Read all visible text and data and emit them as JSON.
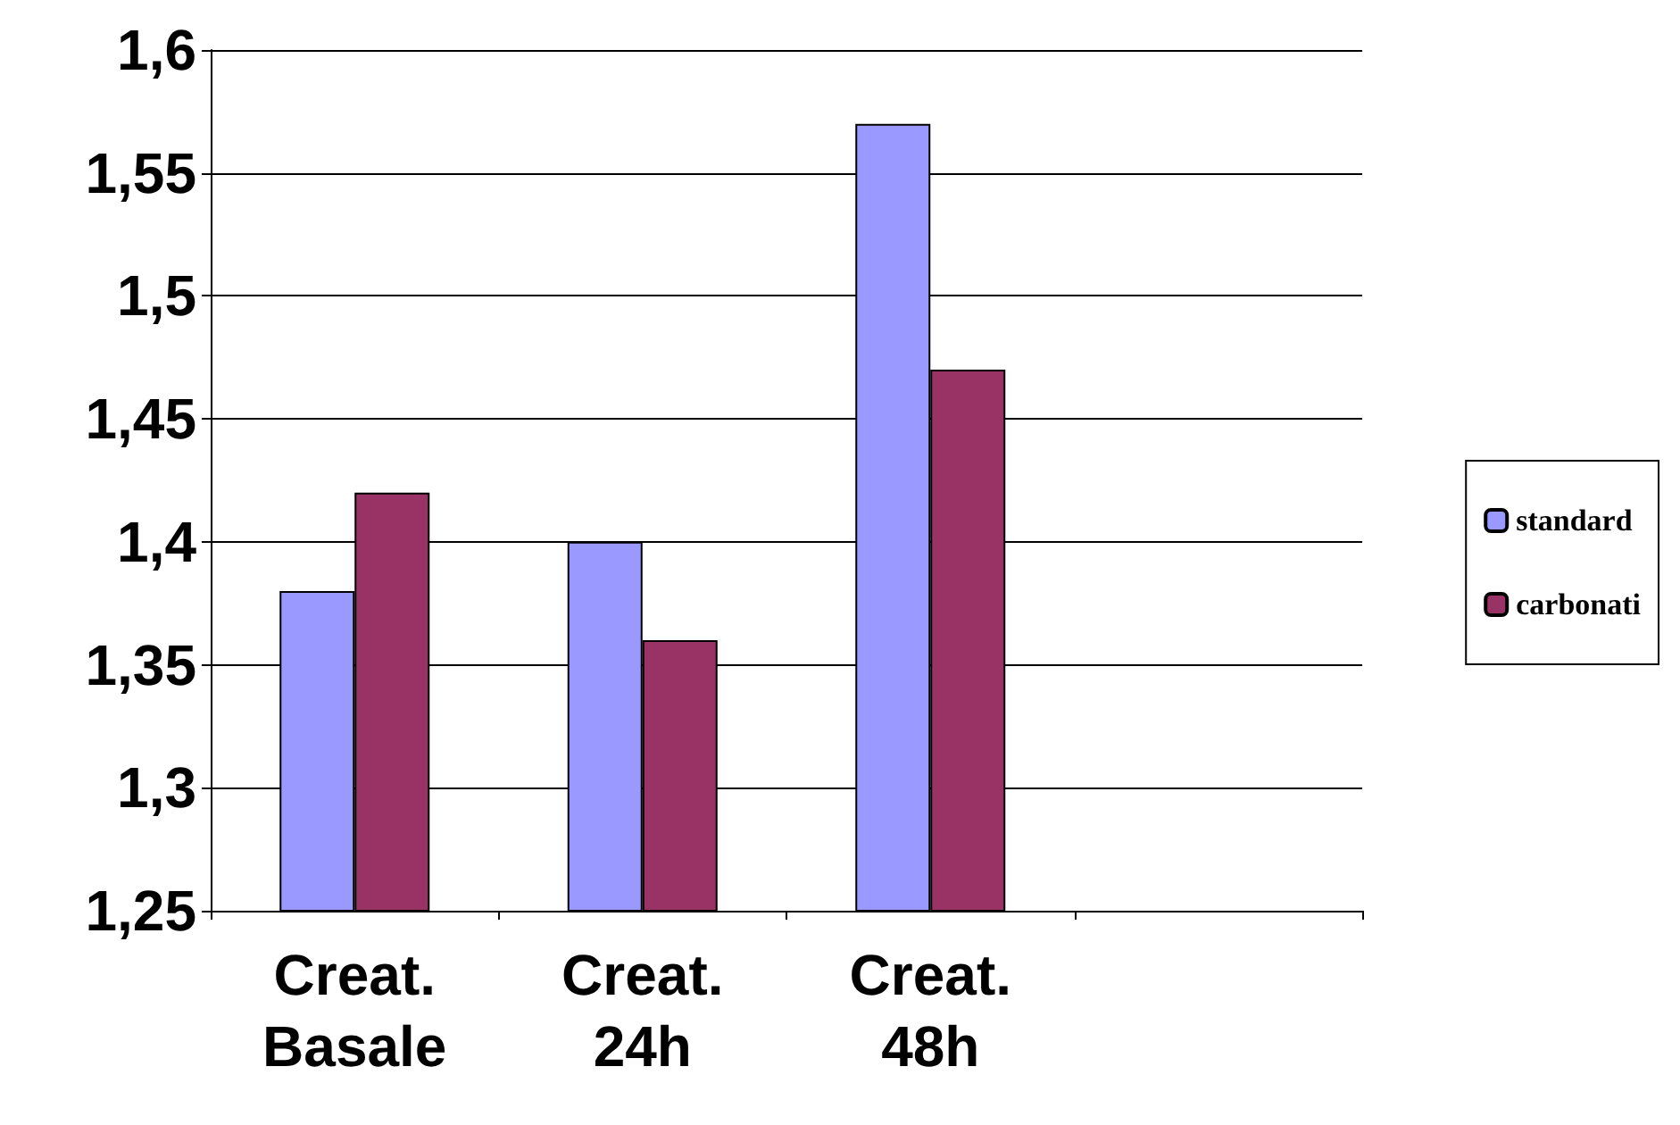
{
  "chart_data": {
    "type": "bar",
    "categories": [
      "Creat.\nBasale",
      "Creat.\n24h",
      "Creat.\n48h",
      null
    ],
    "series": [
      {
        "name": "standard",
        "color": "#9999ff",
        "values": [
          1.38,
          1.4,
          1.57,
          null
        ]
      },
      {
        "name": "carbonati",
        "color": "#993366",
        "values": [
          1.42,
          1.36,
          1.47,
          null
        ]
      }
    ],
    "ylim": [
      1.25,
      1.6
    ],
    "yticks": [
      {
        "value": 1.25,
        "label": "1,25"
      },
      {
        "value": 1.3,
        "label": "1,3"
      },
      {
        "value": 1.35,
        "label": "1,35"
      },
      {
        "value": 1.4,
        "label": "1,4"
      },
      {
        "value": 1.45,
        "label": "1,45"
      },
      {
        "value": 1.5,
        "label": "1,5"
      },
      {
        "value": 1.55,
        "label": "1,55"
      },
      {
        "value": 1.6,
        "label": "1,6"
      }
    ],
    "grid": "y",
    "legend": "right"
  }
}
